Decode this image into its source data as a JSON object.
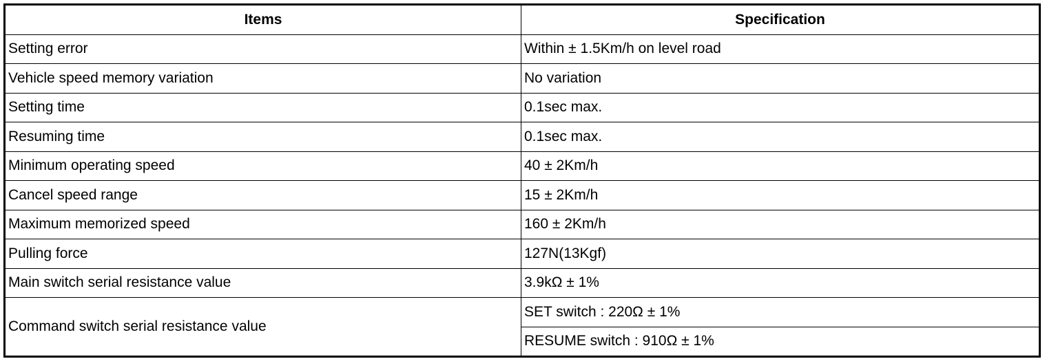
{
  "table": {
    "headers": [
      "Items",
      "Specification"
    ],
    "rows": [
      {
        "item": "Setting error",
        "spec": [
          "Within ± 1.5Km/h on level road"
        ]
      },
      {
        "item": "Vehicle speed memory variation",
        "spec": [
          "No variation"
        ]
      },
      {
        "item": "Setting time",
        "spec": [
          "0.1sec max."
        ]
      },
      {
        "item": "Resuming time",
        "spec": [
          "0.1sec max."
        ]
      },
      {
        "item": "Minimum operating speed",
        "spec": [
          "40 ± 2Km/h"
        ]
      },
      {
        "item": "Cancel speed range",
        "spec": [
          "15 ± 2Km/h"
        ]
      },
      {
        "item": "Maximum memorized speed",
        "spec": [
          "160 ± 2Km/h"
        ]
      },
      {
        "item": "Pulling force",
        "spec": [
          "127N(13Kgf)"
        ]
      },
      {
        "item": "Main switch serial resistance value",
        "spec": [
          "3.9kΩ ± 1%"
        ]
      },
      {
        "item": "Command switch serial resistance value",
        "spec": [
          "SET switch : 220Ω ± 1%",
          "RESUME switch : 910Ω ± 1%"
        ]
      }
    ]
  }
}
